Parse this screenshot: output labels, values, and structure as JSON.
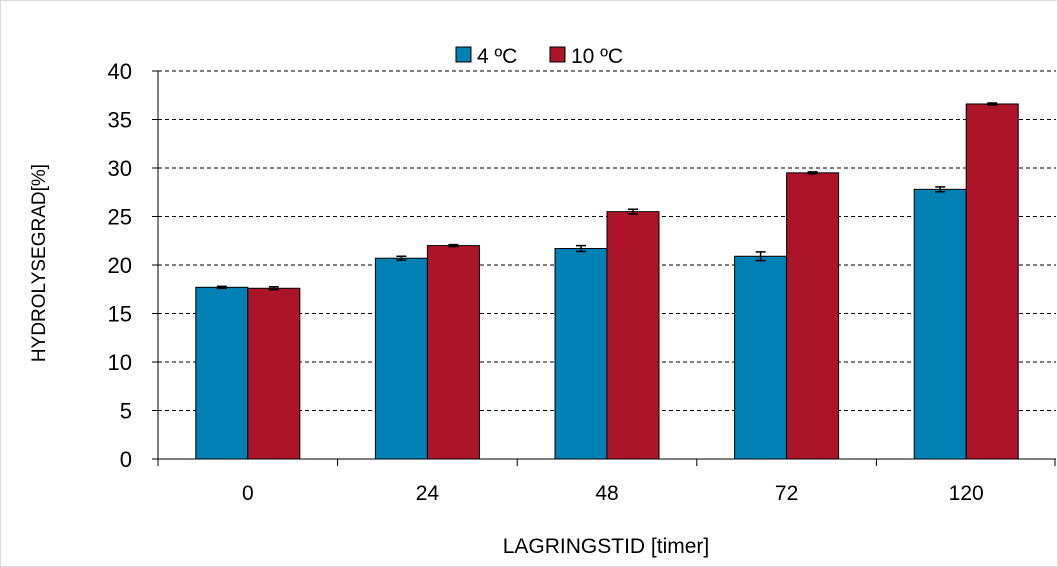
{
  "chart_data": {
    "type": "bar",
    "title": "",
    "xlabel": "LAGRINGSTID [timer]",
    "ylabel": "HYDROLYSEGRAD[%]",
    "categories": [
      "0",
      "24",
      "48",
      "72",
      "120"
    ],
    "ylim": [
      0,
      40
    ],
    "yticks": [
      0,
      5,
      10,
      15,
      20,
      25,
      30,
      35,
      40
    ],
    "grid": "horizontal dashed",
    "legend_position": "top",
    "error_bars": true,
    "series": [
      {
        "name": "4 ºC",
        "color": "#0180b3",
        "values": [
          17.7,
          20.7,
          21.7,
          20.9,
          27.8
        ],
        "errors": [
          0.1,
          0.2,
          0.3,
          0.45,
          0.25
        ]
      },
      {
        "name": "10 ºC",
        "color": "#ab1429",
        "values": [
          17.6,
          22.0,
          25.5,
          29.5,
          36.6
        ],
        "errors": [
          0.15,
          0.1,
          0.25,
          0.1,
          0.1
        ]
      }
    ]
  }
}
